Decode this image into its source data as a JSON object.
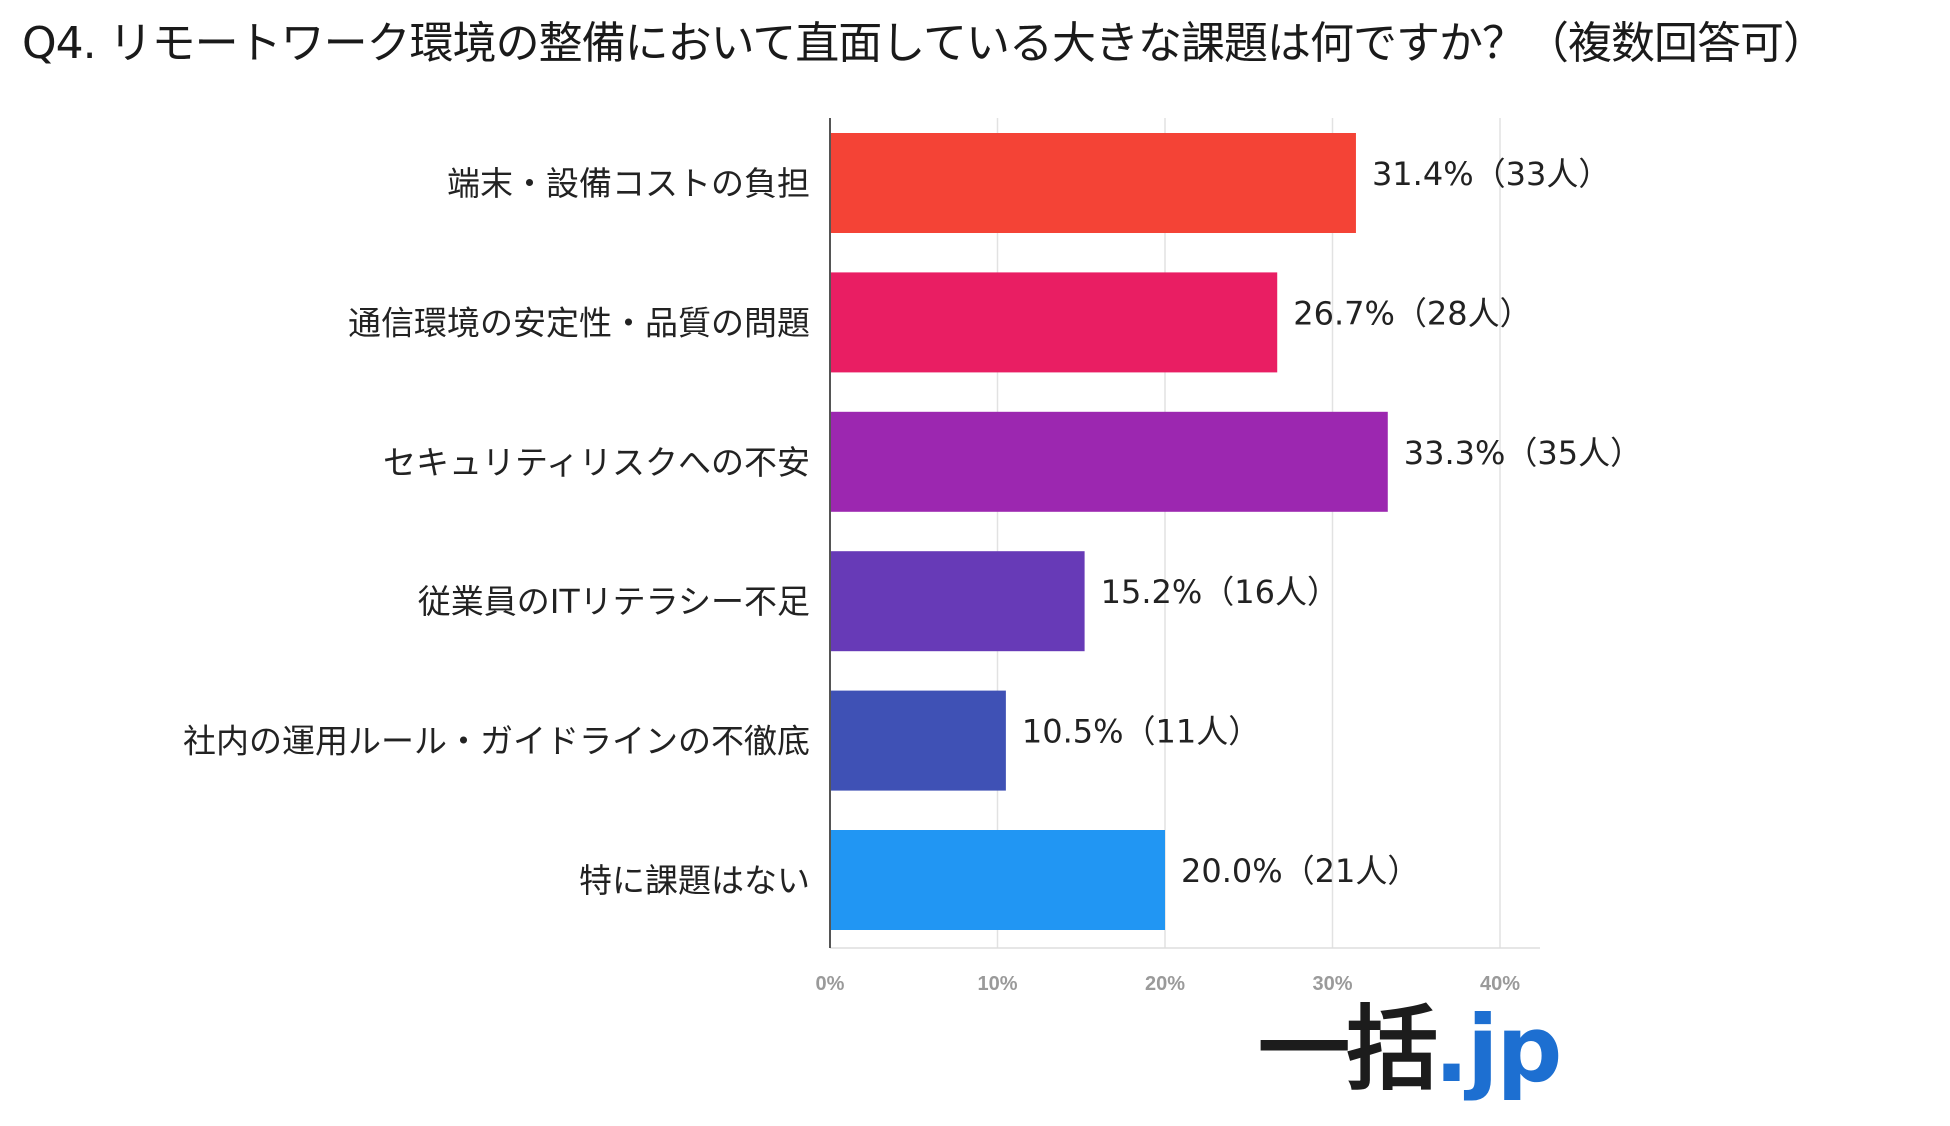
{
  "chart_data": {
    "type": "bar",
    "orientation": "horizontal",
    "title": "Q4. リモートワーク環境の整備において直面している大きな課題は何ですか？（複数回答可）",
    "categories": [
      "端末・設備コストの負担",
      "通信環境の安定性・品質の問題",
      "セキュリティリスクへの不安",
      "従業員のITリテラシー不足",
      "社内の運用ルール・ガイドラインの不徹底",
      "特に課題はない"
    ],
    "values": [
      31.4,
      26.7,
      33.3,
      15.2,
      10.5,
      20.0
    ],
    "data_labels": [
      "31.4%（33人）",
      "26.7%（28人）",
      "33.3%（35人）",
      "15.2%（16人）",
      "10.5%（11人）",
      "20.0%（21人）"
    ],
    "colors": [
      "#f44336",
      "#e91e63",
      "#9c27b0",
      "#673ab7",
      "#3f51b5",
      "#2196f3"
    ],
    "xlim": [
      0,
      40
    ],
    "ticks": [
      0,
      10,
      20,
      30,
      40
    ],
    "tick_labels": [
      "0%",
      "10%",
      "20%",
      "30%",
      "40%"
    ],
    "xlabel": "",
    "ylabel": "",
    "grid": true
  },
  "brand": {
    "logo_main": "一括",
    "logo_tld": ".jp",
    "logo_color": "#1c1c1c",
    "tld_color": "#1d6fd1"
  }
}
